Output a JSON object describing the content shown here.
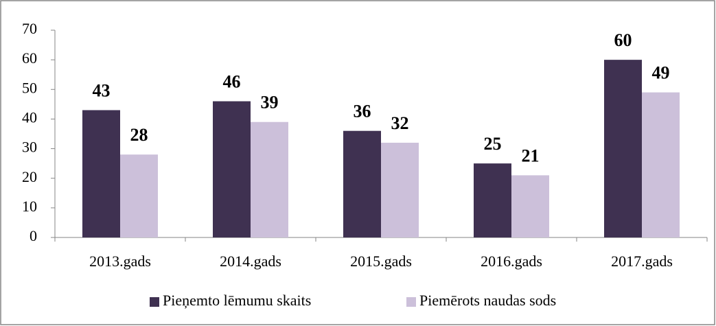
{
  "chart_data": {
    "type": "bar",
    "categories": [
      "2013.gads",
      "2014.gads",
      "2015.gads",
      "2016.gads",
      "2017.gads"
    ],
    "series": [
      {
        "name": "Pieņemto lēmumu skaits",
        "color": "#3f3151",
        "values": [
          43,
          46,
          36,
          25,
          60
        ]
      },
      {
        "name": "Piemērots naudas sods",
        "color": "#ccc0da",
        "values": [
          28,
          39,
          32,
          21,
          49
        ]
      }
    ],
    "ylim": [
      0,
      70
    ],
    "yticks": [
      0,
      10,
      20,
      30,
      40,
      50,
      60,
      70
    ],
    "legend": "bottom",
    "grid": false
  }
}
